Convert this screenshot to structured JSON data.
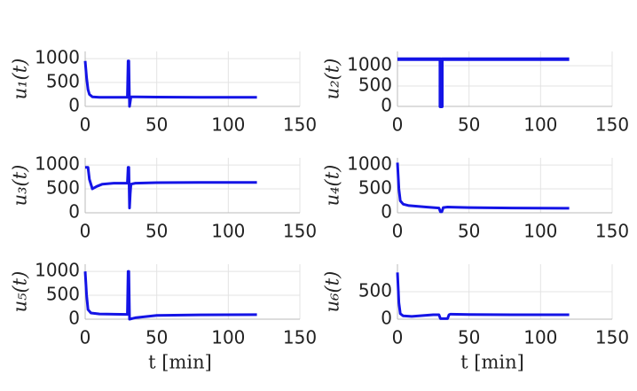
{
  "chart_data": [
    {
      "type": "line",
      "ylabel": "u₁(t)",
      "color": "#1414e6",
      "grid": true,
      "xlim": [
        0,
        150
      ],
      "xticks": [
        0,
        50,
        100,
        150
      ],
      "ylim": [
        0,
        1150
      ],
      "yticks": [
        0,
        500,
        1000
      ],
      "x": [
        0,
        1,
        2,
        3,
        5,
        10,
        20,
        29.5,
        30,
        30.5,
        31,
        31.5,
        32,
        35,
        50,
        80,
        120
      ],
      "values": [
        950,
        600,
        350,
        250,
        200,
        190,
        190,
        190,
        950,
        950,
        0,
        100,
        200,
        200,
        195,
        190,
        190
      ]
    },
    {
      "type": "line",
      "ylabel": "u₂(t)",
      "color": "#1414e6",
      "grid": true,
      "xlim": [
        0,
        150
      ],
      "xticks": [
        0,
        50,
        100,
        150
      ],
      "ylim": [
        0,
        1350
      ],
      "yticks": [
        0,
        500,
        1000
      ],
      "x": [
        0,
        30,
        30,
        31,
        31,
        120
      ],
      "values": [
        1160,
        1160,
        0,
        0,
        1160,
        1160
      ]
    },
    {
      "type": "line",
      "ylabel": "u₃(t)",
      "color": "#1414e6",
      "grid": true,
      "xlim": [
        0,
        150
      ],
      "xticks": [
        0,
        50,
        100,
        150
      ],
      "ylim": [
        0,
        1150
      ],
      "yticks": [
        0,
        500,
        1000
      ],
      "x": [
        0,
        2,
        3,
        5,
        8,
        12,
        20,
        29.5,
        30,
        30.5,
        31,
        31.5,
        32,
        35,
        50,
        80,
        120
      ],
      "values": [
        950,
        950,
        700,
        500,
        550,
        600,
        620,
        620,
        950,
        950,
        100,
        400,
        600,
        620,
        630,
        635,
        635
      ]
    },
    {
      "type": "line",
      "ylabel": "u₄(t)",
      "color": "#1414e6",
      "grid": true,
      "xlim": [
        0,
        150
      ],
      "xticks": [
        0,
        50,
        100,
        150
      ],
      "ylim": [
        0,
        1150
      ],
      "yticks": [
        0,
        500,
        1000
      ],
      "x": [
        0,
        1,
        2,
        4,
        8,
        20,
        29,
        30,
        31,
        32,
        35,
        50,
        80,
        120
      ],
      "values": [
        1050,
        500,
        250,
        180,
        150,
        120,
        100,
        20,
        20,
        110,
        120,
        110,
        100,
        95
      ]
    },
    {
      "type": "line",
      "ylabel": "u₅(t)",
      "xlabel": "t [min]",
      "color": "#1414e6",
      "grid": true,
      "xlim": [
        0,
        150
      ],
      "xticks": [
        0,
        50,
        100,
        150
      ],
      "ylim": [
        0,
        1150
      ],
      "yticks": [
        0,
        500,
        1000
      ],
      "x": [
        0,
        1,
        2,
        4,
        10,
        29.5,
        30,
        30.5,
        31,
        35,
        50,
        80,
        120
      ],
      "values": [
        1000,
        500,
        200,
        130,
        110,
        100,
        1000,
        1000,
        0,
        30,
        80,
        90,
        95
      ]
    },
    {
      "type": "line",
      "ylabel": "u₆(t)",
      "xlabel": "t [min]",
      "color": "#1414e6",
      "grid": true,
      "xlim": [
        0,
        150
      ],
      "xticks": [
        0,
        50,
        100,
        150
      ],
      "ylim": [
        0,
        1000
      ],
      "yticks": [
        0,
        500
      ],
      "x": [
        0,
        1,
        2,
        4,
        10,
        25,
        29,
        30,
        35,
        36,
        37,
        50,
        80,
        120
      ],
      "values": [
        850,
        300,
        100,
        60,
        50,
        80,
        80,
        10,
        10,
        80,
        90,
        85,
        80,
        80
      ]
    }
  ]
}
